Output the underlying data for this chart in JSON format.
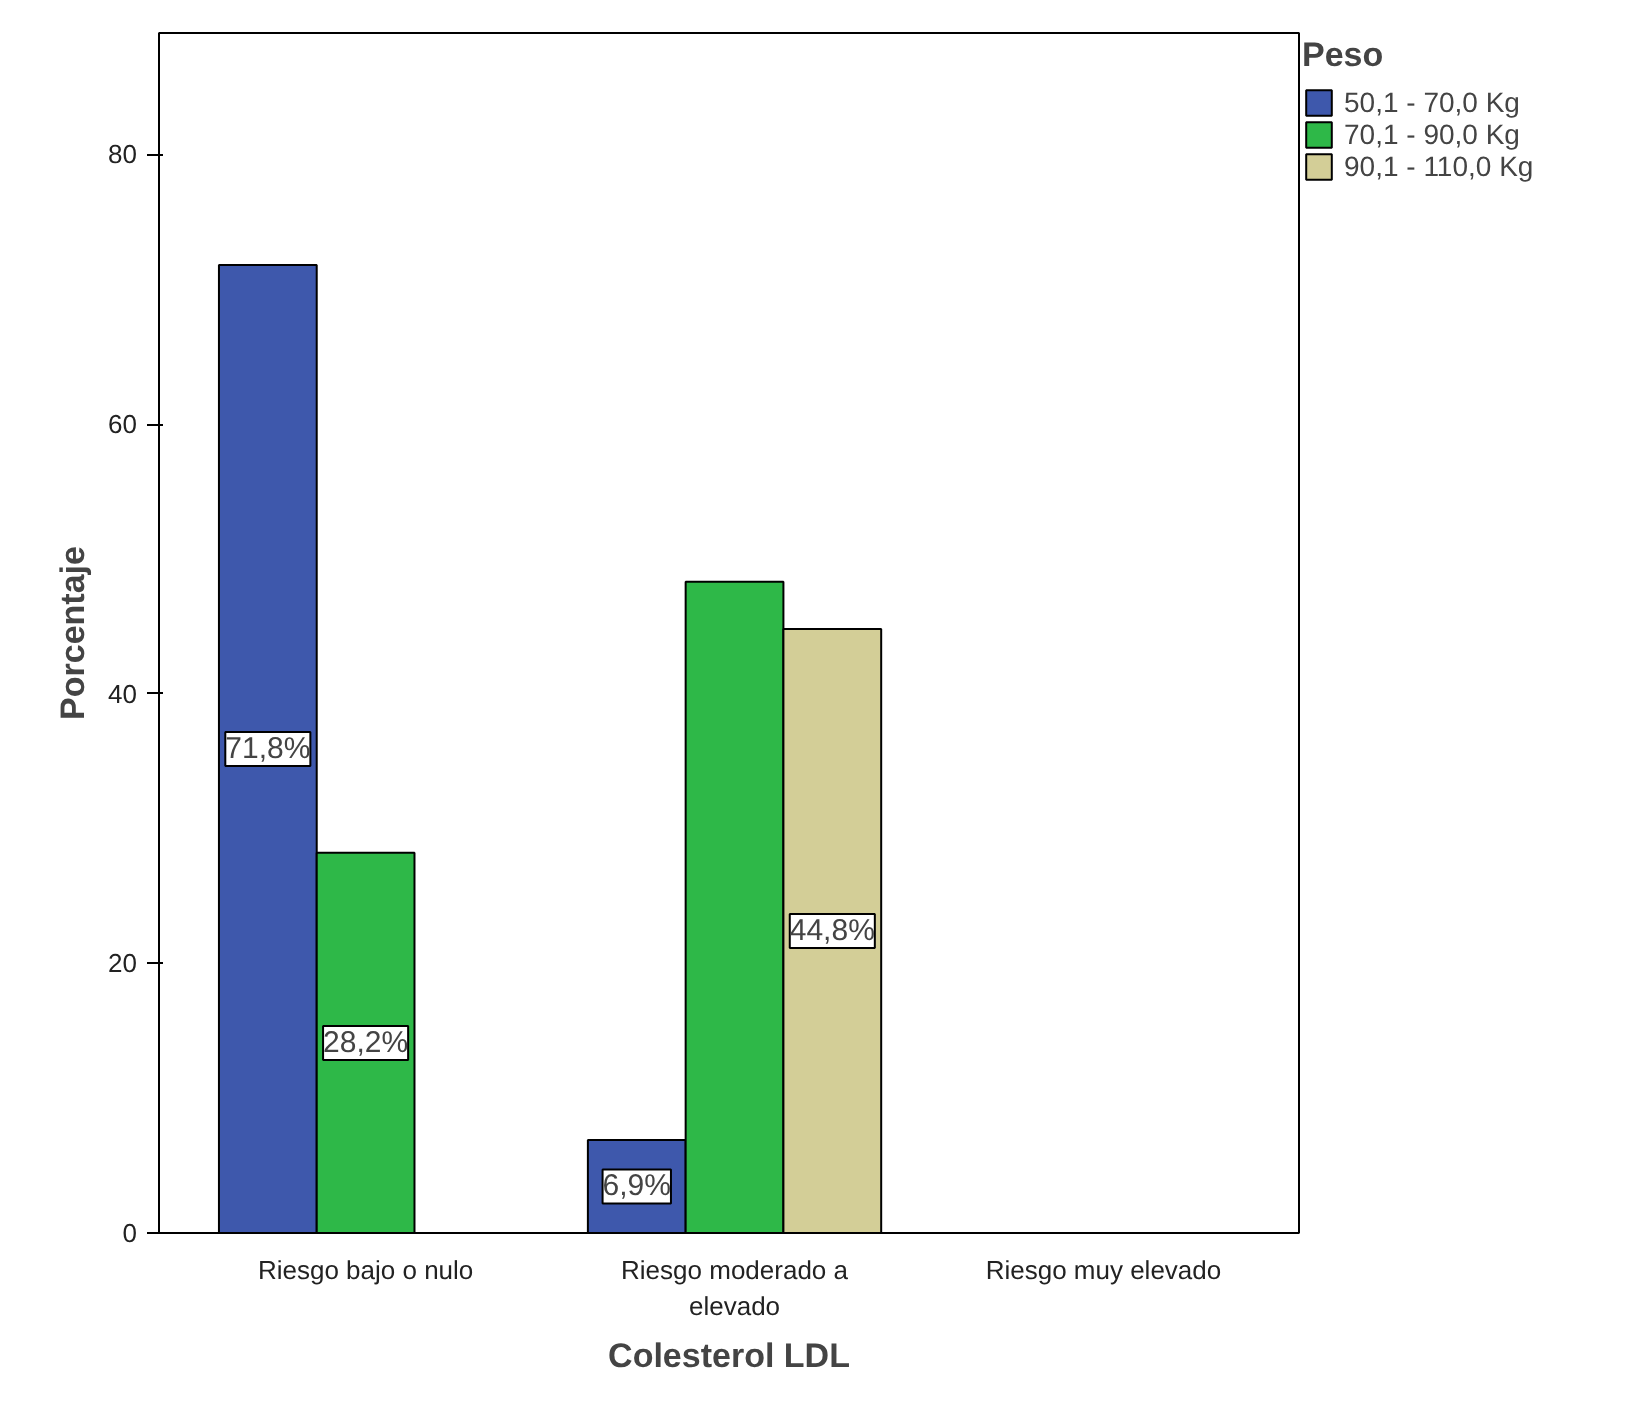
{
  "chart_data": {
    "type": "bar",
    "xlabel": "Colesterol LDL",
    "ylabel": "Porcentaje",
    "legend_title": "Peso",
    "legend": "top right",
    "grid": false,
    "categories": [
      "Riesgo bajo o nulo",
      "Riesgo moderado a elevado",
      "Riesgo muy elevado"
    ],
    "ylim": [
      0,
      89
    ],
    "yticks": [
      0,
      20,
      40,
      60,
      80
    ],
    "series": [
      {
        "name": "50,1 - 70,0 Kg",
        "color": "#3e58ac",
        "values": [
          71.8,
          6.9,
          null
        ],
        "value_labels": [
          "71,8%",
          "6,9%",
          null
        ]
      },
      {
        "name": "70,1 - 90,0 Kg",
        "color": "#2eb848",
        "values": [
          28.2,
          48.3,
          null
        ],
        "value_labels": [
          "28,2%",
          null,
          null
        ]
      },
      {
        "name": "90,1 - 110,0 Kg",
        "color": "#d3ce97",
        "values": [
          null,
          44.8,
          null
        ],
        "value_labels": [
          null,
          "44,8%",
          null
        ]
      }
    ]
  }
}
